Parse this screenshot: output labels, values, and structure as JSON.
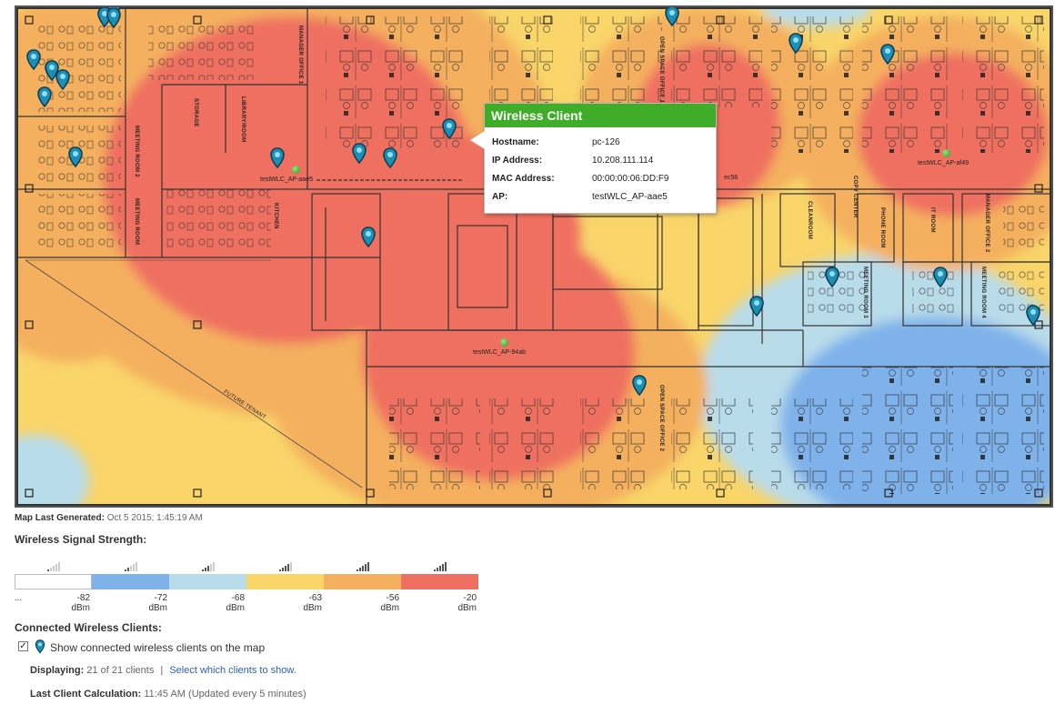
{
  "floor_map": {
    "ap_labels": [
      "testWLC_AP-aae5",
      "testWLC_AP-af49",
      "testWLC_AP-94ab"
    ],
    "partial_labels": [
      "ec58"
    ],
    "room_labels": [
      "MANAGER OFFICE 1",
      "STORAGE",
      "LIBRARY/ROOM",
      "MEETING ROOM 2",
      "MEETING ROOM",
      "KITCHEN",
      "OPEN SPACE OFFICE 1",
      "OPEN SPACE OFFICE 2",
      "PHONE ROOM",
      "IT ROOM",
      "MANAGER OFFICE 2",
      "CLEANROOM",
      "COPY CENTER",
      "MEETING ROOM 3",
      "MEETING ROOM 4",
      "FUTURE TENANT"
    ]
  },
  "tooltip": {
    "title": "Wireless Client",
    "rows": [
      {
        "label": "Hostname:",
        "value": "pc-126"
      },
      {
        "label": "IP Address:",
        "value": "10.208.111.114"
      },
      {
        "label": "MAC Address:",
        "value": "00:00:00:06:DD:F9"
      },
      {
        "label": "AP:",
        "value": "testWLC_AP-aae5"
      }
    ]
  },
  "map_generated": {
    "label": "Map Last Generated:",
    "value": "Oct 5 2015; 1:45:19 AM"
  },
  "signal_strength": {
    "title": "Wireless Signal Strength:",
    "legend": [
      {
        "color": "#ffffff",
        "label": "..."
      },
      {
        "color": "#7fb2ea",
        "label": "-82 dBm"
      },
      {
        "color": "#b9dcea",
        "label": "-72 dBm"
      },
      {
        "color": "#f9d56a",
        "label": "-68 dBm"
      },
      {
        "color": "#f4b05e",
        "label": "-63 dBm"
      },
      {
        "color": "#ef7060",
        "label": "-56 dBm"
      },
      {
        "color": "",
        "label": "-20 dBm"
      }
    ]
  },
  "clients": {
    "title": "Connected Wireless Clients:",
    "show_checkbox_label": "Show connected wireless clients on the map",
    "show_checked": true,
    "displaying_label": "Displaying:",
    "displaying_value": "21 of 21 clients",
    "separator": "|",
    "select_link": "Select which clients to show.",
    "last_calc_label": "Last Client Calculation:",
    "last_calc_value": "11:45 AM (Updated every 5 minutes)"
  },
  "colors": {
    "heat_red": "#ef7060",
    "heat_orange": "#f4b05e",
    "heat_yellow": "#f9d56a",
    "heat_lightblue": "#b9dcea",
    "heat_blue": "#7fb2ea",
    "tooltip_header": "#3fad2a",
    "pin": "#1d8fb5",
    "link": "#3060a8"
  }
}
